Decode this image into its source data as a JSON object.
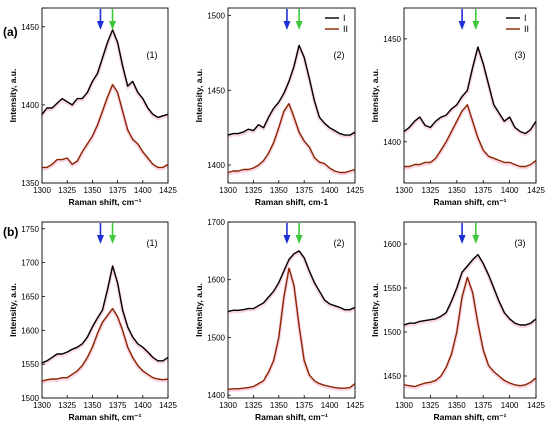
{
  "row_labels": [
    "(a)",
    "(b)"
  ],
  "colors": {
    "series_I": "#000000",
    "series_II": "#8b2500",
    "shade": "#f4b6cf",
    "arrow_blue": "#1f2fd6",
    "arrow_green": "#3ec83a"
  },
  "chart_data": [
    {
      "type": "line",
      "row": 0,
      "col": 0,
      "panel_label": "(1)",
      "xlabel": "Raman shift, cm⁻¹",
      "ylabel": "Intensity, a.u.",
      "xlim": [
        1300,
        1425
      ],
      "ylim": [
        1350,
        1462
      ],
      "xticks": [
        1300,
        1325,
        1350,
        1375,
        1400,
        1425
      ],
      "yticks": [
        1350,
        1400,
        1450
      ],
      "arrows": [
        {
          "x": 1358,
          "color": "blue"
        },
        {
          "x": 1370,
          "color": "green"
        }
      ],
      "legend": [],
      "series": [
        {
          "name": "I",
          "x": [
            1300,
            1305,
            1310,
            1315,
            1320,
            1325,
            1330,
            1335,
            1340,
            1345,
            1350,
            1355,
            1360,
            1365,
            1370,
            1375,
            1380,
            1385,
            1390,
            1395,
            1400,
            1405,
            1410,
            1415,
            1420,
            1425
          ],
          "y": [
            1394,
            1398,
            1398,
            1401,
            1404,
            1402,
            1400,
            1404,
            1404,
            1408,
            1415,
            1420,
            1430,
            1440,
            1448,
            1440,
            1425,
            1412,
            1415,
            1408,
            1404,
            1398,
            1394,
            1392,
            1393,
            1394
          ]
        },
        {
          "name": "II",
          "x": [
            1300,
            1305,
            1310,
            1315,
            1320,
            1325,
            1330,
            1335,
            1340,
            1345,
            1350,
            1355,
            1360,
            1365,
            1370,
            1375,
            1380,
            1385,
            1390,
            1395,
            1400,
            1405,
            1410,
            1415,
            1420,
            1425
          ],
          "y": [
            1360,
            1360,
            1362,
            1365,
            1365,
            1366,
            1362,
            1364,
            1370,
            1375,
            1380,
            1387,
            1396,
            1405,
            1413,
            1408,
            1396,
            1384,
            1378,
            1375,
            1370,
            1366,
            1362,
            1360,
            1360,
            1362
          ]
        }
      ]
    },
    {
      "type": "line",
      "row": 0,
      "col": 1,
      "panel_label": "(2)",
      "xlabel": "Raman shift, cm-1",
      "ylabel": "Intensity, a.u.",
      "xlim": [
        1300,
        1425
      ],
      "ylim": [
        1388,
        1505
      ],
      "xticks": [
        1300,
        1325,
        1350,
        1375,
        1400,
        1425
      ],
      "yticks": [
        1400,
        1450,
        1500
      ],
      "arrows": [
        {
          "x": 1358,
          "color": "blue"
        },
        {
          "x": 1370,
          "color": "green"
        }
      ],
      "legend": [
        "I",
        "II"
      ],
      "series": [
        {
          "name": "I",
          "x": [
            1300,
            1305,
            1310,
            1315,
            1320,
            1325,
            1330,
            1335,
            1340,
            1345,
            1350,
            1355,
            1360,
            1365,
            1370,
            1375,
            1380,
            1385,
            1390,
            1395,
            1400,
            1405,
            1410,
            1415,
            1420,
            1425
          ],
          "y": [
            1420,
            1421,
            1421,
            1422,
            1424,
            1423,
            1427,
            1425,
            1432,
            1438,
            1442,
            1448,
            1456,
            1466,
            1480,
            1472,
            1458,
            1443,
            1432,
            1428,
            1425,
            1423,
            1421,
            1420,
            1420,
            1422
          ]
        },
        {
          "name": "II",
          "x": [
            1300,
            1305,
            1310,
            1315,
            1320,
            1325,
            1330,
            1335,
            1340,
            1345,
            1350,
            1355,
            1360,
            1365,
            1370,
            1375,
            1380,
            1385,
            1390,
            1395,
            1400,
            1405,
            1410,
            1415,
            1420,
            1425
          ],
          "y": [
            1395,
            1396,
            1396,
            1397,
            1397,
            1398,
            1400,
            1403,
            1408,
            1415,
            1425,
            1436,
            1441,
            1432,
            1422,
            1416,
            1412,
            1405,
            1402,
            1401,
            1398,
            1396,
            1395,
            1395,
            1396,
            1397
          ]
        }
      ]
    },
    {
      "type": "line",
      "row": 0,
      "col": 2,
      "panel_label": "(3)",
      "xlabel": "Raman shift, cm⁻¹",
      "ylabel": "Intensity, a.u.",
      "xlim": [
        1300,
        1425
      ],
      "ylim": [
        1380,
        1465
      ],
      "xticks": [
        1300,
        1325,
        1350,
        1375,
        1400,
        1425
      ],
      "yticks": [
        1400,
        1450
      ],
      "arrows": [
        {
          "x": 1355,
          "color": "blue"
        },
        {
          "x": 1368,
          "color": "green"
        }
      ],
      "legend": [
        "I",
        "II"
      ],
      "series": [
        {
          "name": "I",
          "x": [
            1300,
            1305,
            1310,
            1315,
            1320,
            1325,
            1330,
            1335,
            1340,
            1345,
            1350,
            1355,
            1360,
            1365,
            1370,
            1375,
            1380,
            1385,
            1390,
            1395,
            1400,
            1405,
            1410,
            1415,
            1420,
            1425
          ],
          "y": [
            1405,
            1407,
            1410,
            1412,
            1408,
            1407,
            1410,
            1412,
            1413,
            1416,
            1418,
            1422,
            1425,
            1436,
            1446,
            1438,
            1428,
            1418,
            1414,
            1410,
            1412,
            1407,
            1405,
            1404,
            1406,
            1410
          ]
        },
        {
          "name": "II",
          "x": [
            1300,
            1305,
            1310,
            1315,
            1320,
            1325,
            1330,
            1335,
            1340,
            1345,
            1350,
            1355,
            1360,
            1365,
            1370,
            1375,
            1380,
            1385,
            1390,
            1395,
            1400,
            1405,
            1410,
            1415,
            1420,
            1425
          ],
          "y": [
            1388,
            1388,
            1389,
            1389,
            1390,
            1390,
            1392,
            1396,
            1400,
            1405,
            1410,
            1415,
            1418,
            1410,
            1402,
            1396,
            1393,
            1392,
            1391,
            1390,
            1390,
            1389,
            1388,
            1388,
            1389,
            1391
          ]
        }
      ]
    },
    {
      "type": "line",
      "row": 1,
      "col": 0,
      "panel_label": "(1)",
      "xlabel": "Raman shift, cm⁻¹",
      "ylabel": "Intensity, a.u.",
      "xlim": [
        1300,
        1425
      ],
      "ylim": [
        1500,
        1760
      ],
      "xticks": [
        1300,
        1325,
        1350,
        1375,
        1400,
        1425
      ],
      "yticks": [
        1500,
        1550,
        1600,
        1650,
        1700,
        1750
      ],
      "arrows": [
        {
          "x": 1358,
          "color": "blue"
        },
        {
          "x": 1370,
          "color": "green"
        }
      ],
      "legend": [],
      "series": [
        {
          "name": "I",
          "x": [
            1300,
            1305,
            1310,
            1315,
            1320,
            1325,
            1330,
            1335,
            1340,
            1345,
            1350,
            1355,
            1360,
            1365,
            1370,
            1375,
            1380,
            1385,
            1390,
            1395,
            1400,
            1405,
            1410,
            1415,
            1420,
            1425
          ],
          "y": [
            1552,
            1555,
            1560,
            1565,
            1565,
            1568,
            1572,
            1575,
            1580,
            1590,
            1605,
            1618,
            1630,
            1660,
            1695,
            1670,
            1630,
            1605,
            1590,
            1580,
            1575,
            1568,
            1560,
            1555,
            1555,
            1560
          ]
        },
        {
          "name": "II",
          "x": [
            1300,
            1305,
            1310,
            1315,
            1320,
            1325,
            1330,
            1335,
            1340,
            1345,
            1350,
            1355,
            1360,
            1365,
            1370,
            1375,
            1380,
            1385,
            1390,
            1395,
            1400,
            1405,
            1410,
            1415,
            1420,
            1425
          ],
          "y": [
            1525,
            1527,
            1528,
            1528,
            1530,
            1530,
            1535,
            1540,
            1548,
            1560,
            1575,
            1595,
            1612,
            1622,
            1632,
            1620,
            1600,
            1575,
            1560,
            1548,
            1540,
            1535,
            1530,
            1528,
            1527,
            1528
          ]
        }
      ]
    },
    {
      "type": "line",
      "row": 1,
      "col": 1,
      "panel_label": "(2)",
      "xlabel": "Raman shift, cm⁻¹",
      "ylabel": "Intensity, a.u.",
      "xlim": [
        1300,
        1425
      ],
      "ylim": [
        1395,
        1700
      ],
      "xticks": [
        1300,
        1325,
        1350,
        1375,
        1400,
        1425
      ],
      "yticks": [
        1400,
        1500,
        1600,
        1700
      ],
      "arrows": [
        {
          "x": 1358,
          "color": "blue"
        },
        {
          "x": 1370,
          "color": "green"
        }
      ],
      "legend": [],
      "series": [
        {
          "name": "I",
          "x": [
            1300,
            1305,
            1310,
            1315,
            1320,
            1325,
            1330,
            1335,
            1340,
            1345,
            1350,
            1355,
            1360,
            1365,
            1370,
            1375,
            1380,
            1385,
            1390,
            1395,
            1400,
            1405,
            1410,
            1415,
            1420,
            1425
          ],
          "y": [
            1545,
            1547,
            1547,
            1548,
            1550,
            1550,
            1555,
            1560,
            1570,
            1580,
            1595,
            1615,
            1635,
            1645,
            1650,
            1638,
            1615,
            1595,
            1580,
            1565,
            1558,
            1555,
            1552,
            1548,
            1548,
            1552
          ]
        },
        {
          "name": "II",
          "x": [
            1300,
            1305,
            1310,
            1315,
            1320,
            1325,
            1330,
            1335,
            1340,
            1345,
            1350,
            1355,
            1360,
            1365,
            1370,
            1375,
            1380,
            1385,
            1390,
            1395,
            1400,
            1405,
            1410,
            1415,
            1420,
            1425
          ],
          "y": [
            1410,
            1411,
            1411,
            1412,
            1413,
            1415,
            1420,
            1425,
            1440,
            1460,
            1500,
            1570,
            1620,
            1590,
            1520,
            1460,
            1435,
            1425,
            1420,
            1417,
            1415,
            1413,
            1412,
            1412,
            1413,
            1420
          ]
        }
      ]
    },
    {
      "type": "line",
      "row": 1,
      "col": 2,
      "panel_label": "(3)",
      "xlabel": "Raman shift, cm⁻¹",
      "ylabel": "Intensity, a.u.",
      "xlim": [
        1300,
        1425
      ],
      "ylim": [
        1425,
        1625
      ],
      "xticks": [
        1300,
        1325,
        1350,
        1375,
        1400,
        1425
      ],
      "yticks": [
        1450,
        1500,
        1550,
        1600
      ],
      "arrows": [
        {
          "x": 1355,
          "color": "blue"
        },
        {
          "x": 1368,
          "color": "green"
        }
      ],
      "legend": [],
      "series": [
        {
          "name": "I",
          "x": [
            1300,
            1305,
            1310,
            1315,
            1320,
            1325,
            1330,
            1335,
            1340,
            1345,
            1350,
            1355,
            1360,
            1365,
            1370,
            1375,
            1380,
            1385,
            1390,
            1395,
            1400,
            1405,
            1410,
            1415,
            1420,
            1425
          ],
          "y": [
            1508,
            1510,
            1510,
            1512,
            1513,
            1514,
            1515,
            1518,
            1522,
            1535,
            1550,
            1568,
            1575,
            1582,
            1588,
            1578,
            1565,
            1550,
            1535,
            1522,
            1515,
            1510,
            1508,
            1508,
            1510,
            1515
          ]
        },
        {
          "name": "II",
          "x": [
            1300,
            1305,
            1310,
            1315,
            1320,
            1325,
            1330,
            1335,
            1340,
            1345,
            1350,
            1355,
            1360,
            1365,
            1370,
            1375,
            1380,
            1385,
            1390,
            1395,
            1400,
            1405,
            1410,
            1415,
            1420,
            1425
          ],
          "y": [
            1440,
            1439,
            1438,
            1440,
            1442,
            1443,
            1445,
            1450,
            1460,
            1475,
            1500,
            1540,
            1562,
            1545,
            1510,
            1480,
            1462,
            1455,
            1450,
            1445,
            1442,
            1440,
            1439,
            1440,
            1443,
            1448
          ]
        }
      ]
    }
  ]
}
